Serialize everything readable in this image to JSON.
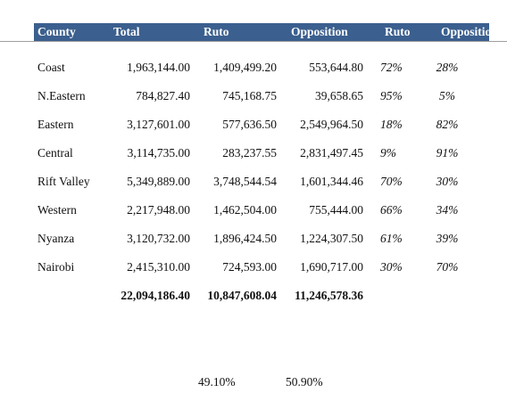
{
  "table": {
    "headers": [
      "County",
      "Total",
      "Ruto",
      "Opposition",
      "Ruto",
      "Opposition"
    ],
    "rows": [
      [
        "Coast",
        "1,963,144.00",
        "1,409,499.20",
        "553,644.80",
        "72%",
        "28%"
      ],
      [
        "N.Eastern",
        "784,827.40",
        "745,168.75",
        "39,658.65",
        "95%",
        "5%"
      ],
      [
        "Eastern",
        "3,127,601.00",
        "577,636.50",
        "2,549,964.50",
        "18%",
        "82%"
      ],
      [
        "Central",
        "3,114,735.00",
        "283,237.55",
        "2,831,497.45",
        "9%",
        "91%"
      ],
      [
        "Rift Valley",
        "5,349,889.00",
        "3,748,544.54",
        "1,601,344.46",
        "70%",
        "30%"
      ],
      [
        "Western",
        "2,217,948.00",
        "1,462,504.00",
        "755,444.00",
        "66%",
        "34%"
      ],
      [
        "Nyanza",
        "3,120,732.00",
        "1,896,424.50",
        "1,224,307.50",
        "61%",
        "39%"
      ],
      [
        "Nairobi",
        "2,415,310.00",
        "724,593.00",
        "1,690,717.00",
        "30%",
        "70%"
      ]
    ],
    "totals": [
      "22,094,186.40",
      "10,847,608.04",
      "11,246,578.36"
    ],
    "shares": [
      "49.10%",
      "50.90%"
    ]
  }
}
